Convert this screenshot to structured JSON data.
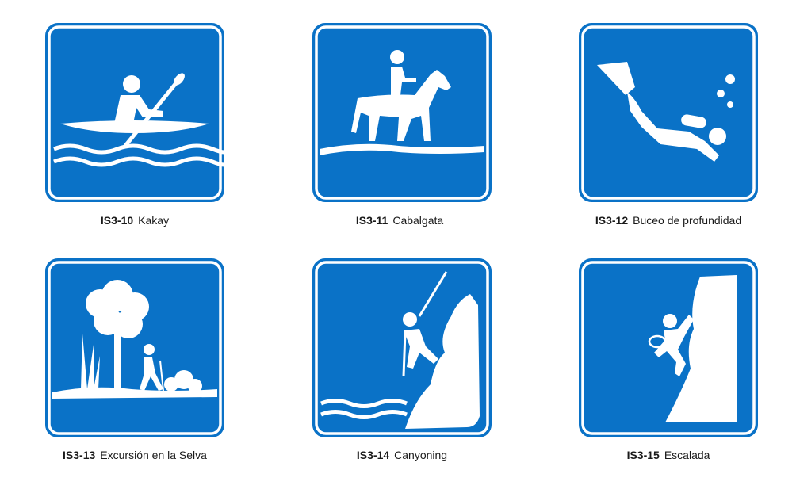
{
  "colors": {
    "sign_blue": "#0a72c7",
    "text": "#1a1a1a"
  },
  "signs": [
    {
      "code": "IS3-10",
      "name": "Kakay",
      "icon": "kayak-icon"
    },
    {
      "code": "IS3-11",
      "name": "Cabalgata",
      "icon": "horse-riding-icon"
    },
    {
      "code": "IS3-12",
      "name": "Buceo de profundidad",
      "icon": "scuba-diving-icon"
    },
    {
      "code": "IS3-13",
      "name": "Excursión en la Selva",
      "icon": "jungle-hiking-icon"
    },
    {
      "code": "IS3-14",
      "name": "Canyoning",
      "icon": "canyoning-icon"
    },
    {
      "code": "IS3-15",
      "name": "Escalada",
      "icon": "climbing-icon"
    }
  ]
}
